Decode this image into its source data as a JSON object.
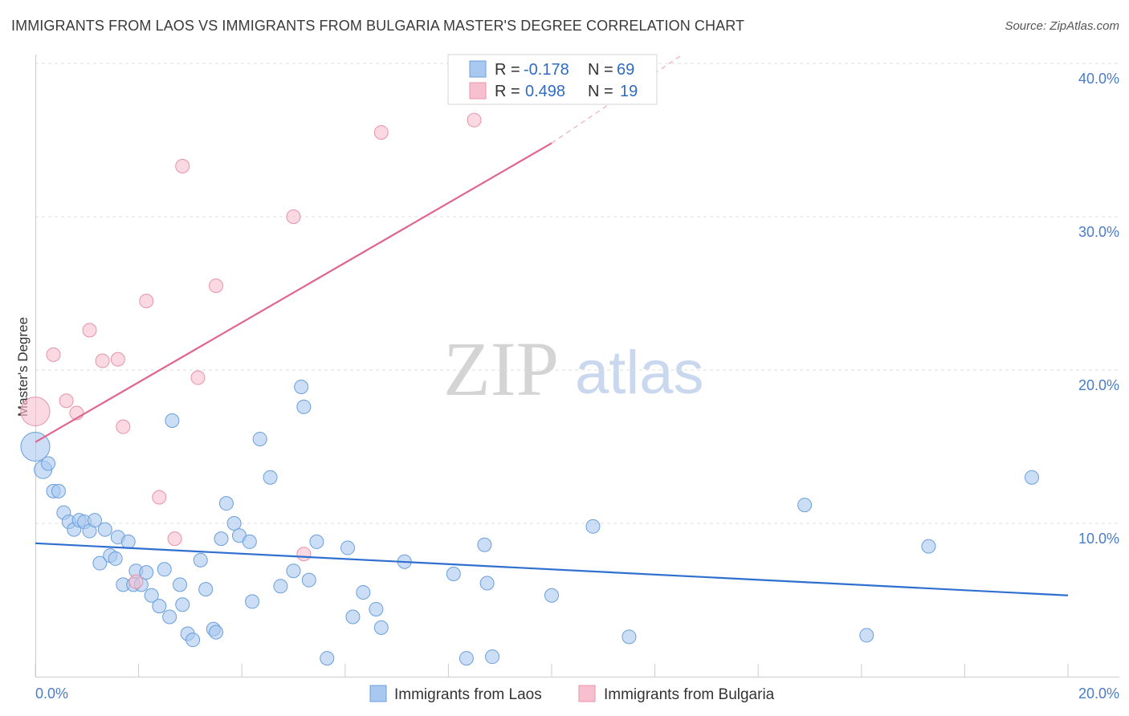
{
  "header": {
    "title": "IMMIGRANTS FROM LAOS VS IMMIGRANTS FROM BULGARIA MASTER'S DEGREE CORRELATION CHART",
    "source": "Source: ZipAtlas.com"
  },
  "watermark": {
    "zip": "ZIP",
    "atlas": "atlas"
  },
  "colors": {
    "laos_fill": "#a9c8f0",
    "laos_stroke": "#6a9fdc",
    "laos_line": "#2f6fd0",
    "bulgaria_fill": "#f7c0cf",
    "bulgaria_stroke": "#e892ab",
    "bulgaria_line": "#e0668f",
    "grid": "#dddddd",
    "axis_text": "#4a7cc8"
  },
  "legend": {
    "rows": [
      {
        "r_label": "R = ",
        "r_value": "-0.178",
        "n_label": "N = ",
        "n_value": "69"
      },
      {
        "r_label": "R = ",
        "r_value": "0.498",
        "n_label": "N = ",
        "n_value": "19"
      }
    ]
  },
  "bottom_legend": {
    "laos": "Immigrants from Laos",
    "bulgaria": "Immigrants from Bulgaria"
  },
  "chart_data": {
    "type": "scatter",
    "title": "IMMIGRANTS FROM LAOS VS IMMIGRANTS FROM BULGARIA MASTER'S DEGREE CORRELATION CHART",
    "xlabel": "",
    "ylabel": "Master's Degree",
    "xlim": [
      0,
      20
    ],
    "ylim": [
      0,
      40
    ],
    "x_tick_labels": [
      "0.0%",
      "20.0%"
    ],
    "y_tick_values": [
      10,
      20,
      30,
      40
    ],
    "y_tick_labels": [
      "10.0%",
      "20.0%",
      "30.0%",
      "40.0%"
    ],
    "grid": true,
    "legend_placement": "top-center",
    "series": [
      {
        "name": "Immigrants from Laos",
        "R": -0.178,
        "N": 69,
        "trend": {
          "x": [
            0,
            20
          ],
          "y": [
            8.7,
            5.3
          ]
        },
        "points": [
          {
            "x": 0.0,
            "y": 15.0,
            "s": "xl"
          },
          {
            "x": 0.15,
            "y": 13.5,
            "s": "m"
          },
          {
            "x": 0.25,
            "y": 13.9
          },
          {
            "x": 0.35,
            "y": 12.1
          },
          {
            "x": 0.45,
            "y": 12.1
          },
          {
            "x": 0.55,
            "y": 10.7
          },
          {
            "x": 0.65,
            "y": 10.1
          },
          {
            "x": 0.75,
            "y": 9.6
          },
          {
            "x": 0.85,
            "y": 10.2
          },
          {
            "x": 0.95,
            "y": 10.1
          },
          {
            "x": 1.05,
            "y": 9.5
          },
          {
            "x": 1.15,
            "y": 10.2
          },
          {
            "x": 1.25,
            "y": 7.4
          },
          {
            "x": 1.35,
            "y": 9.6
          },
          {
            "x": 1.45,
            "y": 7.9
          },
          {
            "x": 1.55,
            "y": 7.7
          },
          {
            "x": 1.6,
            "y": 9.1
          },
          {
            "x": 1.7,
            "y": 6.0
          },
          {
            "x": 1.8,
            "y": 8.8
          },
          {
            "x": 1.9,
            "y": 6.0
          },
          {
            "x": 1.95,
            "y": 6.9
          },
          {
            "x": 2.05,
            "y": 6.0
          },
          {
            "x": 2.15,
            "y": 6.8
          },
          {
            "x": 2.25,
            "y": 5.3
          },
          {
            "x": 2.4,
            "y": 4.6
          },
          {
            "x": 2.5,
            "y": 7.0
          },
          {
            "x": 2.6,
            "y": 3.9
          },
          {
            "x": 2.65,
            "y": 16.7
          },
          {
            "x": 2.8,
            "y": 6.0
          },
          {
            "x": 2.85,
            "y": 4.7
          },
          {
            "x": 2.95,
            "y": 2.8
          },
          {
            "x": 3.05,
            "y": 2.4
          },
          {
            "x": 3.2,
            "y": 7.6
          },
          {
            "x": 3.3,
            "y": 5.7
          },
          {
            "x": 3.45,
            "y": 3.1
          },
          {
            "x": 3.5,
            "y": 2.9
          },
          {
            "x": 3.6,
            "y": 9.0
          },
          {
            "x": 3.7,
            "y": 11.3
          },
          {
            "x": 3.85,
            "y": 10.0
          },
          {
            "x": 3.95,
            "y": 9.2
          },
          {
            "x": 4.15,
            "y": 8.8
          },
          {
            "x": 4.2,
            "y": 4.9
          },
          {
            "x": 4.35,
            "y": 15.5
          },
          {
            "x": 4.55,
            "y": 13.0
          },
          {
            "x": 4.75,
            "y": 5.9
          },
          {
            "x": 5.0,
            "y": 6.9
          },
          {
            "x": 5.15,
            "y": 18.9
          },
          {
            "x": 5.2,
            "y": 17.6
          },
          {
            "x": 5.3,
            "y": 6.3
          },
          {
            "x": 5.45,
            "y": 8.8
          },
          {
            "x": 5.65,
            "y": 1.2
          },
          {
            "x": 6.05,
            "y": 8.4
          },
          {
            "x": 6.15,
            "y": 3.9
          },
          {
            "x": 6.35,
            "y": 5.5
          },
          {
            "x": 6.6,
            "y": 4.4
          },
          {
            "x": 6.7,
            "y": 3.2
          },
          {
            "x": 7.15,
            "y": 7.5
          },
          {
            "x": 8.1,
            "y": 6.7
          },
          {
            "x": 8.35,
            "y": 1.2
          },
          {
            "x": 8.7,
            "y": 8.6
          },
          {
            "x": 8.75,
            "y": 6.1
          },
          {
            "x": 8.85,
            "y": 1.3
          },
          {
            "x": 10.0,
            "y": 5.3
          },
          {
            "x": 10.8,
            "y": 9.8
          },
          {
            "x": 11.5,
            "y": 2.6
          },
          {
            "x": 14.9,
            "y": 11.2
          },
          {
            "x": 16.1,
            "y": 2.7
          },
          {
            "x": 17.3,
            "y": 8.5
          },
          {
            "x": 19.3,
            "y": 13.0
          }
        ]
      },
      {
        "name": "Immigrants from Bulgaria",
        "R": 0.498,
        "N": 19,
        "trend": {
          "x": [
            0,
            10
          ],
          "y": [
            15.3,
            34.8
          ]
        },
        "trend_extension": {
          "x": [
            10,
            12.5
          ],
          "y": [
            34.8,
            40.5
          ]
        },
        "points": [
          {
            "x": 0.0,
            "y": 17.3,
            "s": "xl"
          },
          {
            "x": 0.35,
            "y": 21.0
          },
          {
            "x": 0.6,
            "y": 18.0
          },
          {
            "x": 0.8,
            "y": 17.2
          },
          {
            "x": 1.05,
            "y": 22.6
          },
          {
            "x": 1.3,
            "y": 20.6
          },
          {
            "x": 1.6,
            "y": 20.7
          },
          {
            "x": 1.7,
            "y": 16.3
          },
          {
            "x": 1.95,
            "y": 6.2
          },
          {
            "x": 2.15,
            "y": 24.5
          },
          {
            "x": 2.4,
            "y": 11.7
          },
          {
            "x": 2.7,
            "y": 9.0
          },
          {
            "x": 2.85,
            "y": 33.3
          },
          {
            "x": 3.15,
            "y": 19.5
          },
          {
            "x": 3.5,
            "y": 25.5
          },
          {
            "x": 5.0,
            "y": 30.0
          },
          {
            "x": 5.2,
            "y": 8.0
          },
          {
            "x": 6.7,
            "y": 35.5
          },
          {
            "x": 8.5,
            "y": 36.3
          }
        ]
      }
    ]
  }
}
